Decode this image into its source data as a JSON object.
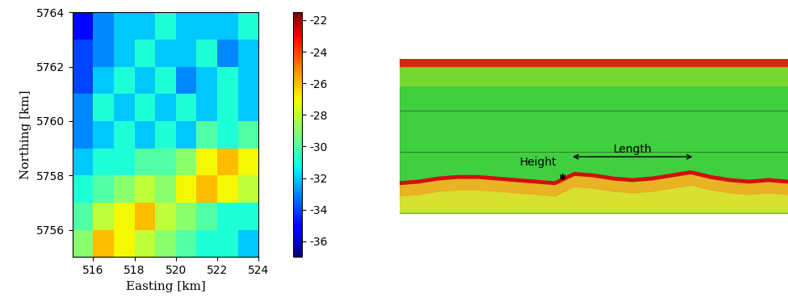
{
  "chart_data": [
    {
      "type": "heatmap",
      "xlabel": "Easting [km]",
      "ylabel": "Northing [km]",
      "xlim": [
        515,
        524
      ],
      "xticks": [
        516,
        518,
        520,
        522,
        524
      ],
      "ylim": [
        5755,
        5764
      ],
      "yticks": [
        5756,
        5758,
        5760,
        5762,
        5764
      ],
      "x": [
        515.5,
        516.5,
        517.5,
        518.5,
        519.5,
        520.5,
        521.5,
        522.5,
        523.5
      ],
      "y": [
        5755.5,
        5756.5,
        5757.5,
        5758.5,
        5759.5,
        5760.5,
        5761.5,
        5762.5,
        5763.5
      ],
      "z": [
        [
          -29,
          -26,
          -27,
          -28,
          -29,
          -30,
          -31,
          -31,
          -32
        ],
        [
          -30,
          -28,
          -27,
          -26,
          -28,
          -29,
          -30,
          -31,
          -31
        ],
        [
          -31,
          -30,
          -29,
          -28,
          -29,
          -27,
          -26,
          -27,
          -28
        ],
        [
          -32,
          -31,
          -31,
          -30,
          -30,
          -29,
          -27,
          -26,
          -27
        ],
        [
          -33,
          -32,
          -31,
          -32,
          -31,
          -32,
          -30,
          -31,
          -30
        ],
        [
          -33,
          -31,
          -32,
          -31,
          -32,
          -31,
          -32,
          -31,
          -32
        ],
        [
          -34,
          -32,
          -31,
          -32,
          -31,
          -33,
          -32,
          -31,
          -32
        ],
        [
          -34,
          -33,
          -32,
          -31,
          -32,
          -32,
          -31,
          -33,
          -32
        ],
        [
          -35,
          -33,
          -32,
          -32,
          -31,
          -32,
          -32,
          -32,
          -31
        ]
      ],
      "colorbar_range": [
        -37,
        -21.5
      ],
      "colorbar_ticks": [
        -36,
        -34,
        -32,
        -30,
        -28,
        -26,
        -24,
        -22
      ]
    },
    {
      "type": "echogram",
      "seabed": [
        0.8,
        0.79,
        0.77,
        0.76,
        0.76,
        0.77,
        0.78,
        0.79,
        0.8,
        0.74,
        0.75,
        0.77,
        0.78,
        0.77,
        0.75,
        0.73,
        0.76,
        0.78,
        0.79,
        0.78,
        0.79
      ],
      "annotations": {
        "height": "Height",
        "length": "Length"
      }
    }
  ]
}
